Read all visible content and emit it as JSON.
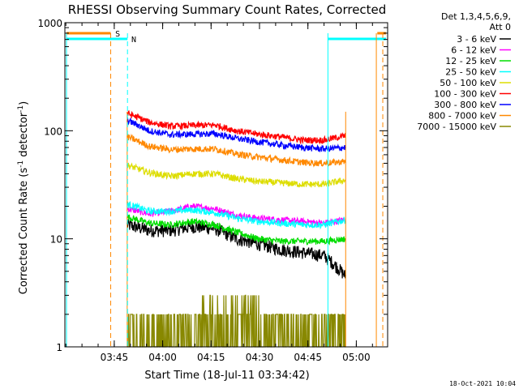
{
  "chart_data": {
    "type": "line",
    "title": "RHESSI Observing Summary Count Rates, Corrected",
    "xlabel": "Start Time (18-Jul-11 03:34:42)",
    "ylabel": "Corrected Count Rate (s",
    "ylabel_sup": "-1",
    "ylabel_mid": " detector",
    "ylabel_sup2": "-1",
    "ylabel_end": ")",
    "yscale": "log",
    "ylim": [
      1,
      1000
    ],
    "xlim_min": [
      -5,
      95
    ],
    "x_ticks": [
      {
        "m": 10.3,
        "label": "03:45"
      },
      {
        "m": 25.3,
        "label": "04:00"
      },
      {
        "m": 40.3,
        "label": "04:15"
      },
      {
        "m": 55.3,
        "label": "04:30"
      },
      {
        "m": 70.3,
        "label": "04:45"
      },
      {
        "m": 85.3,
        "label": "05:00"
      }
    ],
    "y_ticks": [
      {
        "v": 1,
        "label": "1"
      },
      {
        "v": 10,
        "label": "10"
      },
      {
        "v": 100,
        "label": "100"
      },
      {
        "v": 1000,
        "label": "1000"
      }
    ],
    "legend_header": [
      "Det 1,3,4,5,6,9,",
      "Att 0"
    ],
    "legend_position": "right",
    "data_start_min": 14.3,
    "data_end_min": 82.0,
    "series": [
      {
        "name": "3 - 6 keV",
        "color": "#000000",
        "values": [
          13.5,
          12.0,
          12.0,
          13.0,
          12.5,
          10.0,
          9.0,
          8.0,
          7.5,
          7.0,
          4.5
        ]
      },
      {
        "name": "6 - 12 keV",
        "color": "#ff00ff",
        "values": [
          19.0,
          17.0,
          18.0,
          20.0,
          19.0,
          16.5,
          15.5,
          15.0,
          14.5,
          14.0,
          15.0
        ]
      },
      {
        "name": "12 - 25 keV",
        "color": "#00dd00",
        "values": [
          16.0,
          14.0,
          13.5,
          14.5,
          13.5,
          11.5,
          10.0,
          9.5,
          9.5,
          9.5,
          10.0
        ]
      },
      {
        "name": "25 - 50 keV",
        "color": "#00ffff",
        "values": [
          21.0,
          18.0,
          18.0,
          18.5,
          17.5,
          15.5,
          14.5,
          14.0,
          13.5,
          13.5,
          15.0
        ]
      },
      {
        "name": "50 - 100 keV",
        "color": "#dddd00",
        "values": [
          48.0,
          41.0,
          38.0,
          40.0,
          40.0,
          36.0,
          34.0,
          33.0,
          32.0,
          32.0,
          35.0
        ]
      },
      {
        "name": "100 - 300 keV",
        "color": "#ff0000",
        "values": [
          145.0,
          120.0,
          110.0,
          112.0,
          113.0,
          100.0,
          93.0,
          88.0,
          82.0,
          82.0,
          90.0
        ]
      },
      {
        "name": "300 - 800 keV",
        "color": "#0000ff",
        "values": [
          125.0,
          100.0,
          92.0,
          93.0,
          94.0,
          85.0,
          79.0,
          74.0,
          70.0,
          68.0,
          70.0
        ]
      },
      {
        "name": "800 - 7000 keV",
        "color": "#ff8800",
        "values": [
          88.0,
          72.0,
          67.0,
          68.0,
          68.0,
          61.0,
          57.0,
          54.0,
          51.0,
          50.0,
          52.0
        ]
      },
      {
        "name": "7000 - 15000 keV",
        "color": "#888800",
        "values": [
          1.0,
          1.5,
          1.0,
          2.0,
          2.5,
          2.0,
          1.5,
          1.5,
          1.0,
          1.5,
          2.0
        ]
      }
    ],
    "flag_labels": [
      {
        "text": "S",
        "color": "#ff8800"
      },
      {
        "text": "N",
        "color": "#00ffff"
      }
    ],
    "footer_date": "18-Oct-2021 10:04"
  }
}
